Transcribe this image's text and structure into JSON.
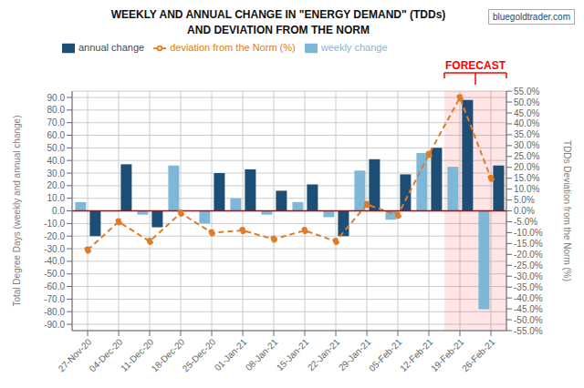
{
  "chart_data": {
    "type": "bar",
    "title": "WEEKLY  AND ANNUAL CHANGE IN \"ENERGY DEMAND\" (TDDs)",
    "subtitle": "AND DEVIATION FROM THE NORM",
    "y_label": "Total Degree Days (weekly and annual change)",
    "y2_label": "TDDs Deviation from the Norm (%)",
    "categories": [
      "27-Nov-20",
      "04-Dec-20",
      "11-Dec-20",
      "18-Dec-20",
      "25-Dec-20",
      "01-Jan-21",
      "08-Jan-21",
      "15-Jan-21",
      "22-Jan-21",
      "29-Jan-21",
      "05-Feb-21",
      "12-Feb-21",
      "19-Feb-21",
      "26-Feb-21"
    ],
    "series": [
      {
        "name": "weekly change",
        "type": "bar",
        "color": "#7eb8d8",
        "values": [
          7,
          0,
          -3,
          36,
          -10,
          10,
          -3,
          7,
          -5,
          32,
          -7,
          46,
          35,
          -78
        ]
      },
      {
        "name": "annual change",
        "type": "bar",
        "color": "#1d4f76",
        "values": [
          -20,
          37,
          -13,
          0,
          30,
          33,
          16,
          21,
          -20,
          41,
          29,
          50,
          88,
          36
        ]
      },
      {
        "name": "deviation from the Norm (%)",
        "type": "line",
        "axis": "y2",
        "color": "#e07b26",
        "marker": "circle",
        "line_style": "dashed",
        "values": [
          -18,
          -5,
          -14,
          -1,
          -10,
          -9,
          -13,
          -9,
          -14,
          3,
          -2,
          26,
          52,
          15
        ]
      }
    ],
    "ylim": [
      -95,
      95
    ],
    "yticks": [
      {
        "value": -90,
        "label": "-90.0"
      },
      {
        "value": -80,
        "label": "-80.0"
      },
      {
        "value": -70,
        "label": "-70.0"
      },
      {
        "value": -60,
        "label": "-60.0"
      },
      {
        "value": -50,
        "label": "-50.0"
      },
      {
        "value": -40,
        "label": "-40.0"
      },
      {
        "value": -30,
        "label": "-30.0"
      },
      {
        "value": -20,
        "label": "-20.0"
      },
      {
        "value": -10,
        "label": "-10.0"
      },
      {
        "value": 0,
        "label": "0.0"
      },
      {
        "value": 10,
        "label": "10.0"
      },
      {
        "value": 20,
        "label": "20.0"
      },
      {
        "value": 30,
        "label": "30.0"
      },
      {
        "value": 40,
        "label": "40.0"
      },
      {
        "value": 50,
        "label": "50.0"
      },
      {
        "value": 60,
        "label": "60.0"
      },
      {
        "value": 70,
        "label": "70.0"
      },
      {
        "value": 80,
        "label": "80.0"
      },
      {
        "value": 90,
        "label": "90.0"
      }
    ],
    "y2lim": [
      -55,
      55
    ],
    "y2ticks": [
      {
        "value": -55,
        "label": "-55.0%"
      },
      {
        "value": -50,
        "label": "-50.0%"
      },
      {
        "value": -45,
        "label": "-45.0%"
      },
      {
        "value": -40,
        "label": "-40.0%"
      },
      {
        "value": -35,
        "label": "-35.0%"
      },
      {
        "value": -30,
        "label": "-30.0%"
      },
      {
        "value": -25,
        "label": "-25.0%"
      },
      {
        "value": -20,
        "label": "-20.0%"
      },
      {
        "value": -15,
        "label": "-15.0%"
      },
      {
        "value": -10,
        "label": "-10.0%"
      },
      {
        "value": -5,
        "label": "-5.0%"
      },
      {
        "value": 0,
        "label": "0.0%"
      },
      {
        "value": 5,
        "label": "5.0%"
      },
      {
        "value": 10,
        "label": "10.0%"
      },
      {
        "value": 15,
        "label": "15.0%"
      },
      {
        "value": 20,
        "label": "20.0%"
      },
      {
        "value": 25,
        "label": "25.0%"
      },
      {
        "value": 30,
        "label": "30.0%"
      },
      {
        "value": 35,
        "label": "35.0%"
      },
      {
        "value": 40,
        "label": "40.0%"
      },
      {
        "value": 45,
        "label": "45.0%"
      },
      {
        "value": 50,
        "label": "50.0%"
      },
      {
        "value": 55,
        "label": "55.0%"
      }
    ],
    "grid": true,
    "legend": "top",
    "annotations": [
      {
        "text": "FORECAST",
        "x_start": "19-Feb-21",
        "x_end": "26-Feb-21",
        "color": "red"
      },
      {
        "y": 0,
        "color": "#cc0000"
      },
      {
        "text": "bluegoldtrader.com"
      }
    ]
  }
}
